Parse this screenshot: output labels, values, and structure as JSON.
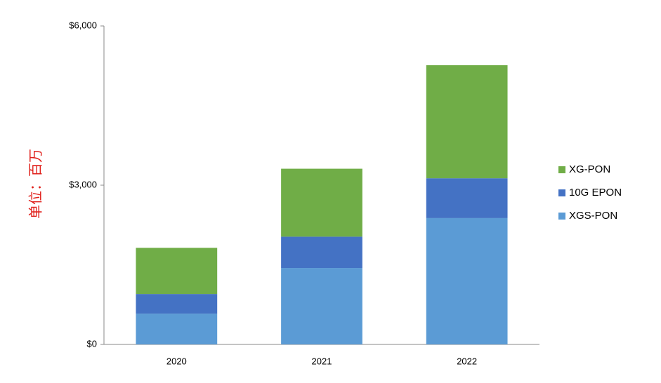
{
  "chart_data": {
    "type": "stacked-bar",
    "y_label": "单位：百万",
    "categories": [
      "2020",
      "2021",
      "2022"
    ],
    "series": [
      {
        "name": "XGS-PON",
        "color": "#5b9bd5",
        "values": [
          580,
          1440,
          2380
        ]
      },
      {
        "name": "10G EPON",
        "color": "#4472c4",
        "values": [
          370,
          590,
          750
        ]
      },
      {
        "name": "XG-PON",
        "color": "#70ad47",
        "values": [
          870,
          1280,
          2130
        ]
      }
    ],
    "ylim": [
      0,
      6000
    ],
    "yticks": [
      {
        "value": 0,
        "label": "$0"
      },
      {
        "value": 3000,
        "label": "$3,000"
      },
      {
        "value": 6000,
        "label": "$6,000"
      }
    ],
    "grid": false,
    "legend": "right"
  }
}
